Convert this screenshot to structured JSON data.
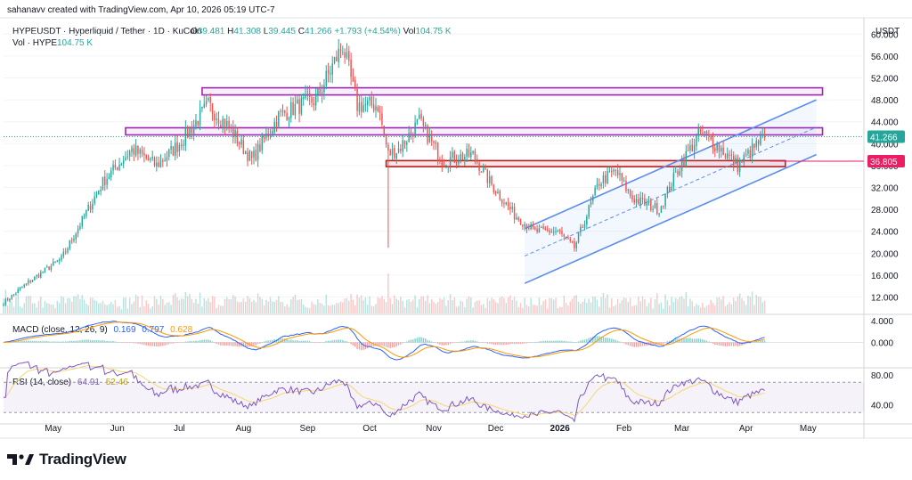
{
  "header": {
    "credit": "sahanavv created with TradingView.com, Apr 10, 2026 05:19 UTC-7",
    "symbol_title": "HYPEUSDT · Hyperliquid / Tether · 1D · KuCoin",
    "ohlc": [
      {
        "label": "O",
        "value": "39.481"
      },
      {
        "label": "H",
        "value": "41.308"
      },
      {
        "label": "L",
        "value": "39.445"
      },
      {
        "label": "C",
        "value": "41.266"
      }
    ],
    "change": "+1.793 (+4.54%)",
    "vol_label": "Vol",
    "vol_value": "104.75 K",
    "vol_legend_label": "Vol · HYPE",
    "vol_legend_value": "104.75 K"
  },
  "branding": {
    "name": "TradingView"
  },
  "colors": {
    "up": "#26a69a",
    "down": "#ef5350",
    "channel": "#5b8def",
    "zone_purple": "#9c27b0",
    "zone_red": "#b71c1c",
    "macd_line": "#2962ff",
    "signal_line": "#ff9800",
    "rsi_line": "#7e57c2",
    "rsi_ma": "#f5d76e",
    "price_badge": "#26a69a",
    "level_badge": "#e91e63"
  },
  "chart_data": [
    {
      "type": "candlestick",
      "title": "HYPEUSDT · Hyperliquid / Tether · 1D · KuCoin",
      "currency_label": "USDT",
      "y_ticks": [
        "60.000",
        "56.000",
        "52.000",
        "48.000",
        "44.000",
        "40.000",
        "36.000",
        "32.000",
        "28.000",
        "24.000",
        "20.000",
        "16.000",
        "12.000"
      ],
      "ylim": [
        9,
        62
      ],
      "x_ticks": [
        "May",
        "Jun",
        "Jul",
        "Aug",
        "Sep",
        "Oct",
        "Nov",
        "Dec",
        "2026",
        "Feb",
        "Mar",
        "Apr",
        "May"
      ],
      "x_range": [
        "2025-04-07",
        "2026-05-28"
      ],
      "last_price": "41.266",
      "level_marker": "36.805",
      "zones": [
        {
          "from": "2025-07-12",
          "to": "2026-05-08",
          "low": 48.9,
          "high": 50.2,
          "color": "purple"
        },
        {
          "from": "2025-06-05",
          "to": "2026-05-08",
          "low": 41.6,
          "high": 42.9,
          "color": "purple"
        },
        {
          "from": "2025-10-09",
          "to": "2026-04-20",
          "low": 35.8,
          "high": 36.9,
          "color": "red"
        }
      ],
      "channel": [
        {
          "x1": "2025-12-15",
          "y1": 24.5,
          "x2": "2026-05-05",
          "y2": 48.0,
          "style": "solid"
        },
        {
          "x1": "2025-12-15",
          "y1": 14.5,
          "x2": "2026-05-05",
          "y2": 38.0,
          "style": "solid"
        },
        {
          "x1": "2025-12-15",
          "y1": 19.5,
          "x2": "2026-05-05",
          "y2": 43.0,
          "style": "dashed"
        }
      ],
      "daily_close_anchors": [
        [
          "2025-04-07",
          11
        ],
        [
          "2025-04-20",
          15
        ],
        [
          "2025-05-05",
          19
        ],
        [
          "2025-05-15",
          26
        ],
        [
          "2025-05-25",
          33
        ],
        [
          "2025-06-08",
          39
        ],
        [
          "2025-06-20",
          36
        ],
        [
          "2025-07-01",
          40
        ],
        [
          "2025-07-15",
          47
        ],
        [
          "2025-07-25",
          43
        ],
        [
          "2025-08-05",
          37
        ],
        [
          "2025-08-18",
          45
        ],
        [
          "2025-08-28",
          47
        ],
        [
          "2025-09-05",
          48
        ],
        [
          "2025-09-18",
          58
        ],
        [
          "2025-09-25",
          47
        ],
        [
          "2025-10-05",
          47
        ],
        [
          "2025-10-10",
          38
        ],
        [
          "2025-10-15",
          39
        ],
        [
          "2025-10-25",
          44
        ],
        [
          "2025-11-05",
          37
        ],
        [
          "2025-11-20",
          38
        ],
        [
          "2025-11-28",
          33
        ],
        [
          "2025-12-10",
          27
        ],
        [
          "2025-12-20",
          24
        ],
        [
          "2025-12-31",
          24
        ],
        [
          "2026-01-08",
          21
        ],
        [
          "2026-01-20",
          33
        ],
        [
          "2026-01-28",
          35
        ],
        [
          "2026-02-05",
          30
        ],
        [
          "2026-02-18",
          28
        ],
        [
          "2026-02-28",
          36
        ],
        [
          "2026-03-10",
          42
        ],
        [
          "2026-03-20",
          39
        ],
        [
          "2026-03-28",
          36
        ],
        [
          "2026-04-10",
          41.3
        ]
      ]
    },
    {
      "type": "histogram+line",
      "label": "MACD (close, 12, 26, 9)",
      "values": [
        "0.169",
        "0.797",
        "0.628"
      ],
      "y_ticks": [
        "4.000",
        "0.000"
      ],
      "ylim": [
        -4.5,
        5
      ]
    },
    {
      "type": "line",
      "label": "RSI (14, close)",
      "values": [
        "64.91",
        "52.46"
      ],
      "y_ticks": [
        "80.00",
        "40.00"
      ],
      "ylim": [
        22,
        88
      ],
      "band": [
        30,
        70
      ]
    }
  ]
}
